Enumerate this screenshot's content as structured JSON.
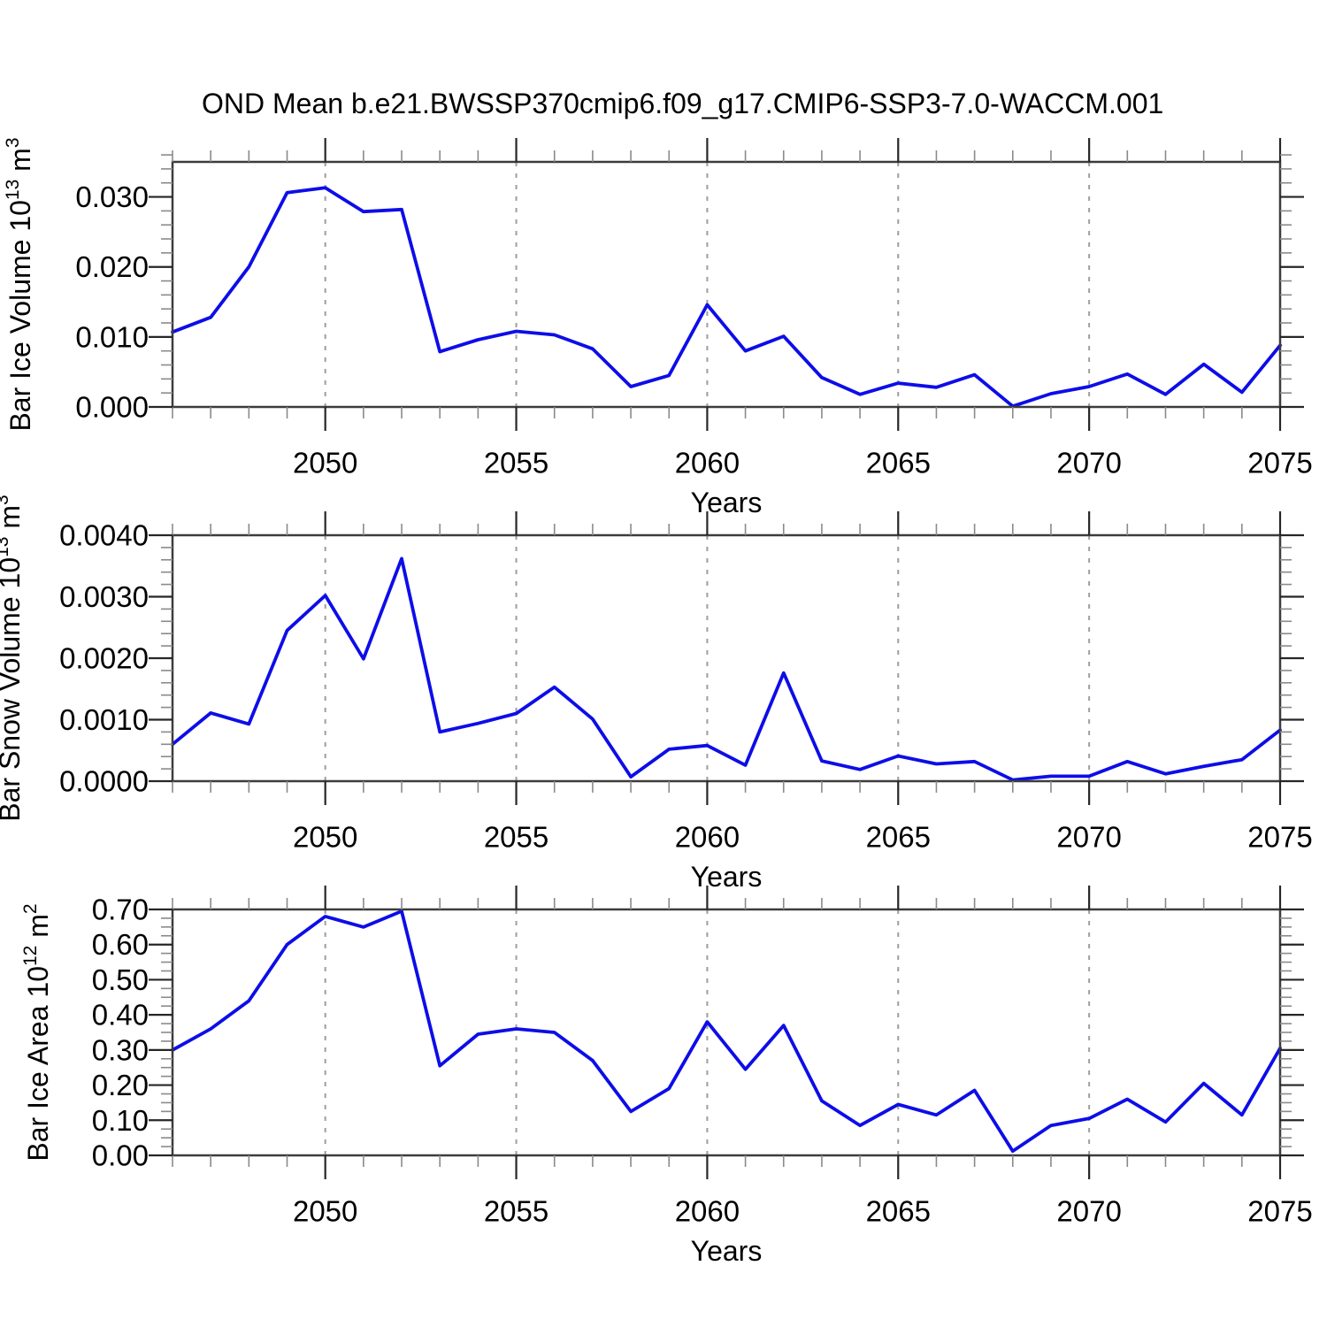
{
  "title": "OND Mean b.e21.BWSSP370cmip6.f09_g17.CMIP6-SSP3-7.0-WACCM.001",
  "colors": {
    "line": "#0d0de8",
    "box": "#3c3c3c",
    "major_tick": "#262626",
    "minor_tick": "#8a8a8a",
    "grid_dash": "#9e9e9e",
    "text": "#000000"
  },
  "chart_data": {
    "type": "line",
    "x": {
      "label": "Years",
      "years": [
        2046,
        2047,
        2048,
        2049,
        2050,
        2051,
        2052,
        2053,
        2054,
        2055,
        2056,
        2057,
        2058,
        2059,
        2060,
        2061,
        2062,
        2063,
        2064,
        2065,
        2066,
        2067,
        2068,
        2069,
        2070,
        2071,
        2072,
        2073,
        2074,
        2075
      ],
      "major_ticks": [
        2050,
        2055,
        2060,
        2065,
        2070,
        2075
      ],
      "grid_dashed_at": [
        2050,
        2055,
        2060,
        2065,
        2070
      ],
      "range": [
        2046,
        2075
      ]
    },
    "legend": "none",
    "grid": "vertical-dashed-at-major-x",
    "series": [
      {
        "name": "ice-volume",
        "y_title_parts": {
          "base": "Bar Ice Volume 10",
          "exp": "13",
          "unit_base": " m",
          "unit_exp": "3"
        },
        "ylim": [
          0,
          0.035
        ],
        "y_major_tick_values": [
          0.0,
          0.01,
          0.02,
          0.03
        ],
        "y_major_tick_labels": [
          "0.000",
          "0.010",
          "0.020",
          "0.030"
        ],
        "y_minor_step": 0.002,
        "values": [
          0.0107,
          0.0128,
          0.02,
          0.0306,
          0.0313,
          0.0279,
          0.0282,
          0.0079,
          0.0096,
          0.0108,
          0.0103,
          0.0083,
          0.0029,
          0.0045,
          0.0146,
          0.008,
          0.0101,
          0.0042,
          0.0018,
          0.0034,
          0.0028,
          0.0046,
          0.0001,
          0.0019,
          0.0029,
          0.0047,
          0.0018,
          0.0061,
          0.0021,
          0.0088
        ]
      },
      {
        "name": "snow-volume",
        "y_title_parts": {
          "base": "Bar Snow Volume 10",
          "exp": "13",
          "unit_base": " m",
          "unit_exp": "3"
        },
        "ylim": [
          0,
          0.004
        ],
        "y_major_tick_values": [
          0.0,
          0.001,
          0.002,
          0.003,
          0.004
        ],
        "y_major_tick_labels": [
          "0.0000",
          "0.0010",
          "0.0020",
          "0.0030",
          "0.0040"
        ],
        "y_minor_step": 0.0002,
        "values": [
          0.0006,
          0.00111,
          0.00093,
          0.00245,
          0.00302,
          0.00199,
          0.00362,
          0.0008,
          0.00094,
          0.0011,
          0.00153,
          0.00101,
          7e-05,
          0.00052,
          0.00058,
          0.00026,
          0.00176,
          0.00033,
          0.00019,
          0.00041,
          0.00028,
          0.00032,
          2e-05,
          8e-05,
          8e-05,
          0.00032,
          0.00012,
          0.00024,
          0.00035,
          0.00083
        ]
      },
      {
        "name": "ice-area",
        "y_title_parts": {
          "base": "Bar Ice Area 10",
          "exp": "12",
          "unit_base": " m",
          "unit_exp": "2"
        },
        "ylim": [
          0,
          0.7
        ],
        "y_major_tick_values": [
          0.0,
          0.1,
          0.2,
          0.3,
          0.4,
          0.5,
          0.6,
          0.7
        ],
        "y_major_tick_labels": [
          "0.00",
          "0.10",
          "0.20",
          "0.30",
          "0.40",
          "0.50",
          "0.60",
          "0.70"
        ],
        "y_minor_step": 0.025,
        "values": [
          0.3,
          0.36,
          0.44,
          0.6,
          0.68,
          0.65,
          0.695,
          0.255,
          0.345,
          0.36,
          0.35,
          0.27,
          0.125,
          0.19,
          0.38,
          0.245,
          0.37,
          0.155,
          0.085,
          0.145,
          0.115,
          0.185,
          0.012,
          0.085,
          0.105,
          0.16,
          0.095,
          0.205,
          0.115,
          0.305
        ]
      }
    ]
  }
}
